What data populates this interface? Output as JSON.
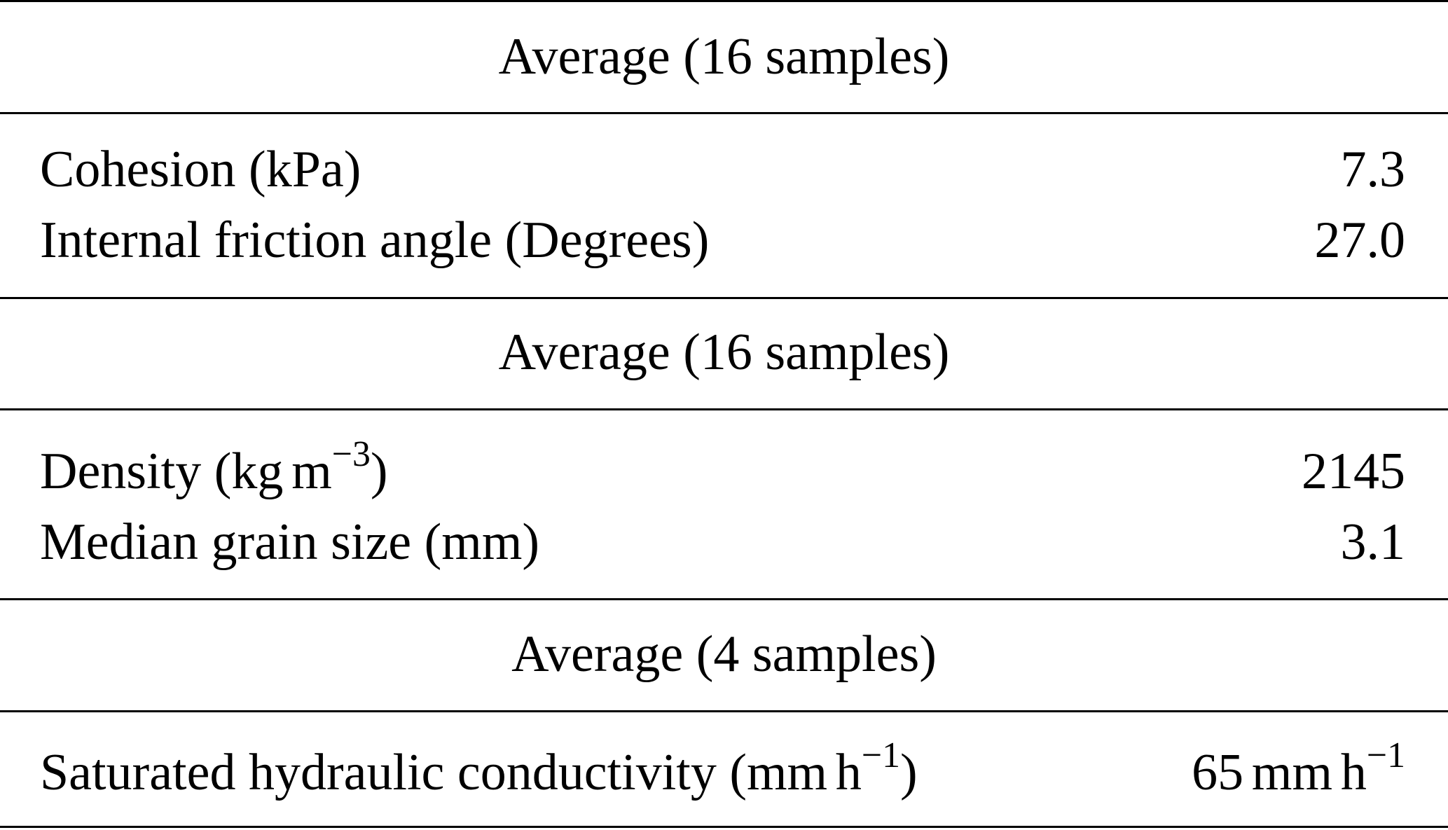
{
  "sections": [
    {
      "header": "Average (16 samples)",
      "rows": [
        {
          "label": "Cohesion (kPa)",
          "value": "7.3"
        },
        {
          "label": "Internal friction angle (Degrees)",
          "value": "27.0"
        }
      ]
    },
    {
      "header": "Average (16 samples)",
      "rows": [
        {
          "label_prefix": "Density (kg",
          "label_unit": "m",
          "label_sup": "−3",
          "label_suffix": ")",
          "value": "2145"
        },
        {
          "label": "Median grain size (mm)",
          "value": "3.1"
        }
      ]
    },
    {
      "header": "Average (4 samples)",
      "rows": [
        {
          "label_prefix": "Saturated hydraulic conductivity (mm",
          "label_unit": "h",
          "label_sup": "−1",
          "label_suffix": ")",
          "value_prefix": "65",
          "value_mid": "mm",
          "value_unit": "h",
          "value_sup": "−1"
        }
      ]
    }
  ]
}
